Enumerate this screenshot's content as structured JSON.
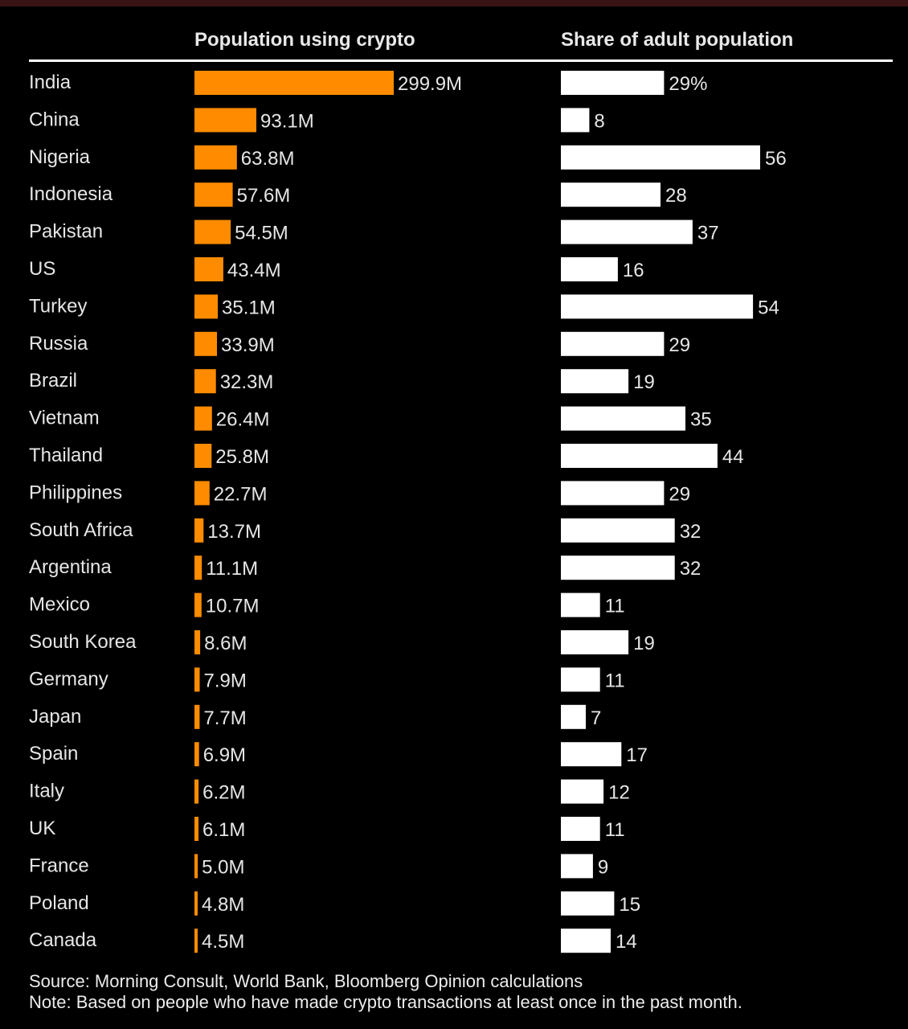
{
  "chart_data": {
    "type": "bar",
    "title": "",
    "panels": [
      {
        "name": "Population using crypto",
        "unit": "M",
        "color": "#ff8c00"
      },
      {
        "name": "Share of adult population",
        "unit": "%",
        "color": "#ffffff"
      }
    ],
    "rows": [
      {
        "country": "India",
        "population": 299.9,
        "population_label": "299.9M",
        "share": 29,
        "share_label": "29%"
      },
      {
        "country": "China",
        "population": 93.1,
        "population_label": "93.1M",
        "share": 8,
        "share_label": "8"
      },
      {
        "country": "Nigeria",
        "population": 63.8,
        "population_label": "63.8M",
        "share": 56,
        "share_label": "56"
      },
      {
        "country": "Indonesia",
        "population": 57.6,
        "population_label": "57.6M",
        "share": 28,
        "share_label": "28"
      },
      {
        "country": "Pakistan",
        "population": 54.5,
        "population_label": "54.5M",
        "share": 37,
        "share_label": "37"
      },
      {
        "country": "US",
        "population": 43.4,
        "population_label": "43.4M",
        "share": 16,
        "share_label": "16"
      },
      {
        "country": "Turkey",
        "population": 35.1,
        "population_label": "35.1M",
        "share": 54,
        "share_label": "54"
      },
      {
        "country": "Russia",
        "population": 33.9,
        "population_label": "33.9M",
        "share": 29,
        "share_label": "29"
      },
      {
        "country": "Brazil",
        "population": 32.3,
        "population_label": "32.3M",
        "share": 19,
        "share_label": "19"
      },
      {
        "country": "Vietnam",
        "population": 26.4,
        "population_label": "26.4M",
        "share": 35,
        "share_label": "35"
      },
      {
        "country": "Thailand",
        "population": 25.8,
        "population_label": "25.8M",
        "share": 44,
        "share_label": "44"
      },
      {
        "country": "Philippines",
        "population": 22.7,
        "population_label": "22.7M",
        "share": 29,
        "share_label": "29"
      },
      {
        "country": "South Africa",
        "population": 13.7,
        "population_label": "13.7M",
        "share": 32,
        "share_label": "32"
      },
      {
        "country": "Argentina",
        "population": 11.1,
        "population_label": "11.1M",
        "share": 32,
        "share_label": "32"
      },
      {
        "country": "Mexico",
        "population": 10.7,
        "population_label": "10.7M",
        "share": 11,
        "share_label": "11"
      },
      {
        "country": "South Korea",
        "population": 8.6,
        "population_label": "8.6M",
        "share": 19,
        "share_label": "19"
      },
      {
        "country": "Germany",
        "population": 7.9,
        "population_label": "7.9M",
        "share": 11,
        "share_label": "11"
      },
      {
        "country": "Japan",
        "population": 7.7,
        "population_label": "7.7M",
        "share": 7,
        "share_label": "7"
      },
      {
        "country": "Spain",
        "population": 6.9,
        "population_label": "6.9M",
        "share": 17,
        "share_label": "17"
      },
      {
        "country": "Italy",
        "population": 6.2,
        "population_label": "6.2M",
        "share": 12,
        "share_label": "12"
      },
      {
        "country": "UK",
        "population": 6.1,
        "population_label": "6.1M",
        "share": 11,
        "share_label": "11"
      },
      {
        "country": "France",
        "population": 5.0,
        "population_label": "5.0M",
        "share": 9,
        "share_label": "9"
      },
      {
        "country": "Poland",
        "population": 4.8,
        "population_label": "4.8M",
        "share": 15,
        "share_label": "15"
      },
      {
        "country": "Canada",
        "population": 4.5,
        "population_label": "4.5M",
        "share": 14,
        "share_label": "14"
      }
    ]
  },
  "header": {
    "population_title": "Population using crypto",
    "share_title": "Share of adult population"
  },
  "footer": {
    "source": "Source: Morning Consult, World Bank, Bloomberg Opinion calculations",
    "note": "Note: Based on people who have made crypto transactions at least once in the past month."
  }
}
